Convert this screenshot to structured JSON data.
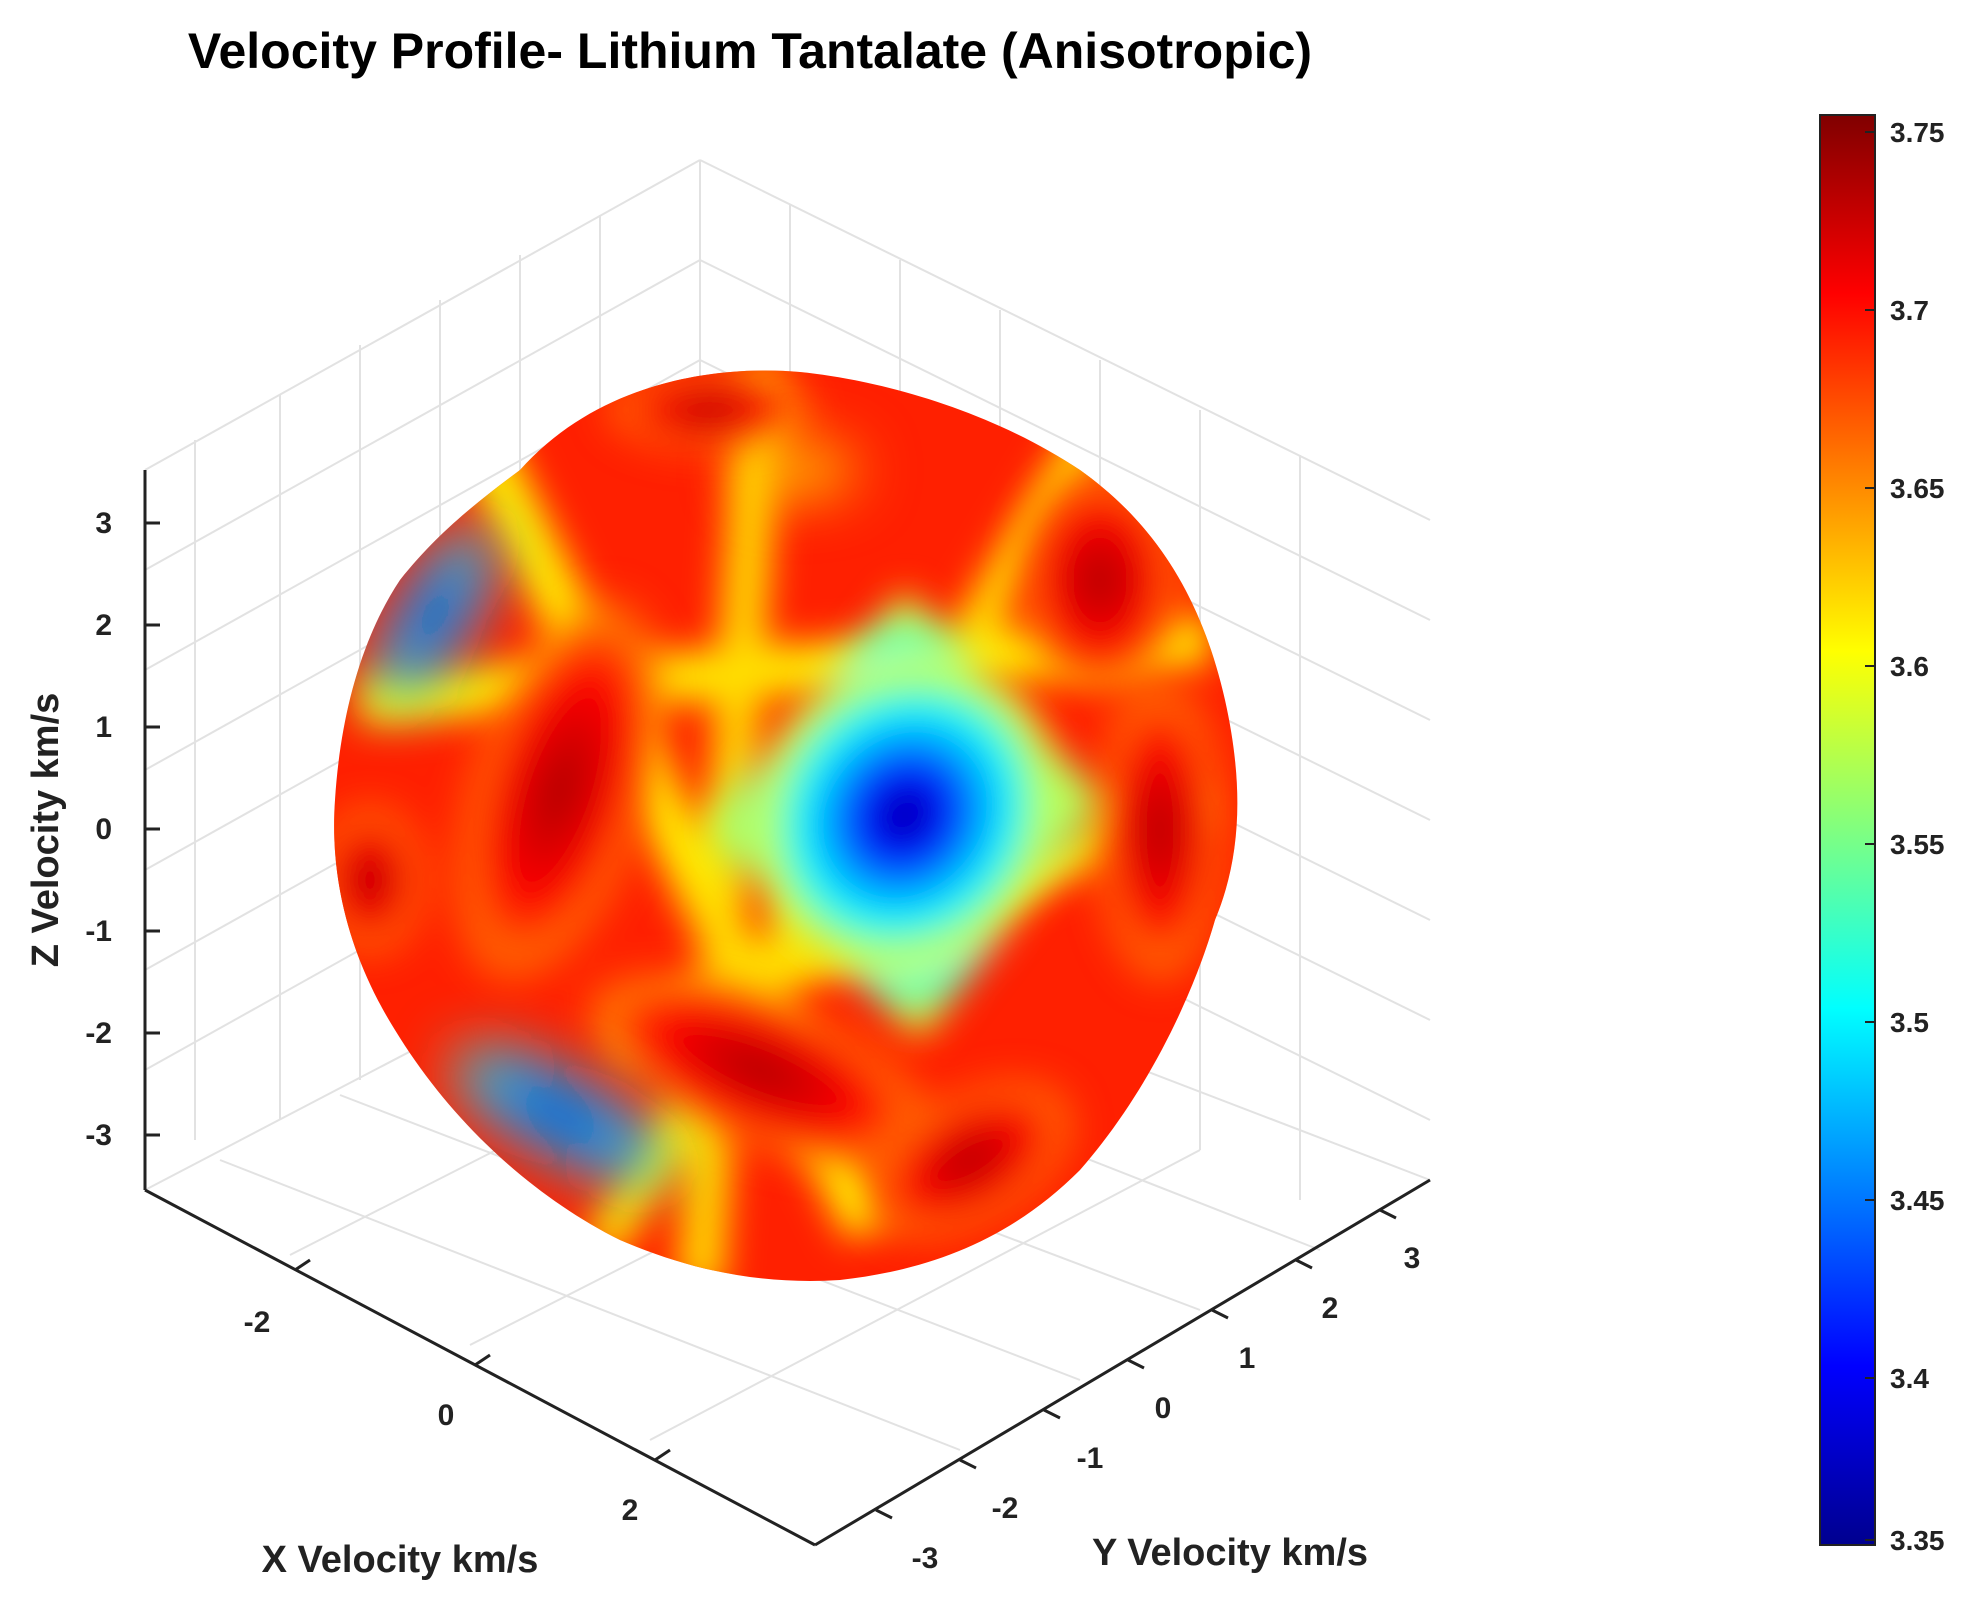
{
  "chart_data": {
    "type": "heatmap",
    "subtype": "3d-surface",
    "title": "Velocity Profile- Lithium Tantalate (Anisotropic)",
    "xlabel": "X Velocity km/s",
    "ylabel": "Y Velocity km/s",
    "zlabel": "Z Velocity km/s",
    "x_ticks": [
      "-2",
      "0",
      "2"
    ],
    "y_ticks": [
      "-3",
      "-2",
      "-1",
      "0",
      "1",
      "2",
      "3"
    ],
    "z_ticks": [
      "3",
      "2",
      "1",
      "0",
      "-1",
      "-2",
      "-3"
    ],
    "xlim": [
      -3.5,
      3.5
    ],
    "ylim": [
      -3.5,
      3.5
    ],
    "zlim": [
      -3.5,
      3.5
    ],
    "grid": true,
    "colormap": "jet",
    "colorbar": {
      "placement": "right",
      "range": [
        3.35,
        3.75
      ],
      "ticks": [
        "3.75",
        "3.7",
        "3.65",
        "3.6",
        "3.55",
        "3.5",
        "3.45",
        "3.4",
        "3.35"
      ]
    },
    "surface": {
      "description_values": {
        "min_velocity": 3.35,
        "max_velocity": 3.75
      }
    }
  },
  "colors": {
    "jet": [
      "#00008f",
      "#0000ff",
      "#0080ff",
      "#00ffff",
      "#80ff80",
      "#ffff00",
      "#ff8000",
      "#ff0000",
      "#800000"
    ],
    "axis": "#222222",
    "grid": "#e3e3e3"
  }
}
